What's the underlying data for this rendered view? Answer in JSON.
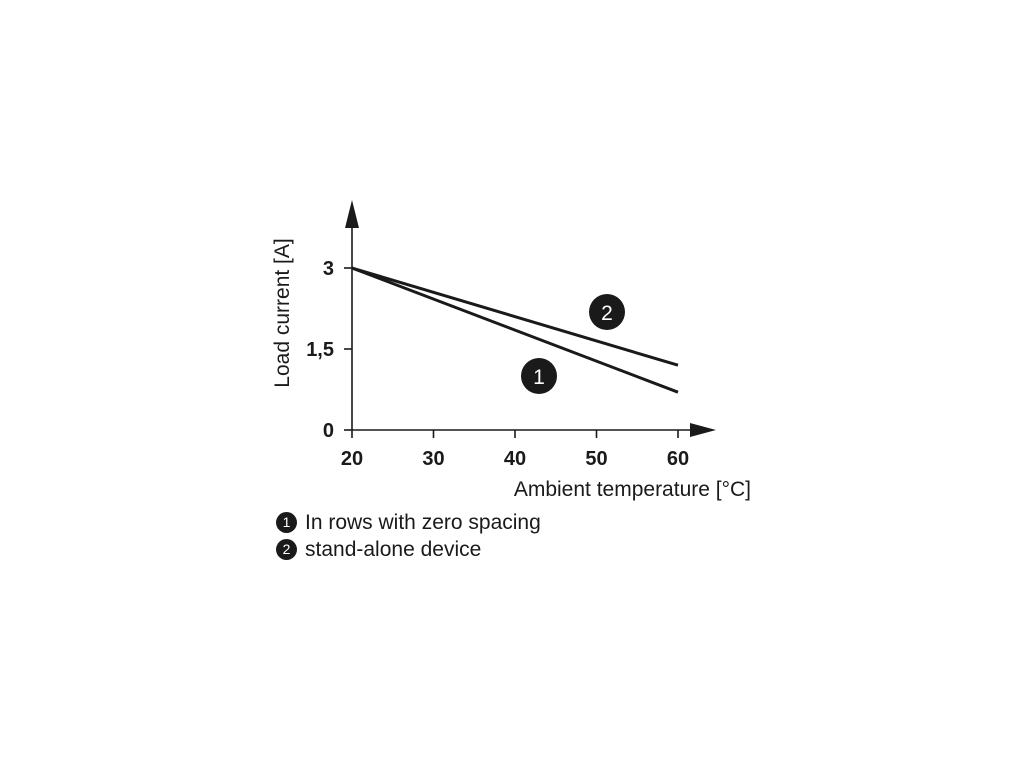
{
  "chart_data": {
    "type": "line",
    "xlabel": "Ambient temperature [°C]",
    "ylabel": "Load current [A]",
    "xlim": [
      20,
      60
    ],
    "ylim": [
      0,
      3
    ],
    "x_ticks": [
      "20",
      "30",
      "40",
      "50",
      "60"
    ],
    "y_ticks": [
      "0",
      "1,5",
      "3"
    ],
    "x_tick_values": [
      20,
      30,
      40,
      50,
      60
    ],
    "y_tick_values": [
      0,
      1.5,
      3
    ],
    "series": [
      {
        "marker": "1",
        "x": [
          20,
          60
        ],
        "y": [
          3,
          0.7
        ]
      },
      {
        "marker": "2",
        "x": [
          20,
          60
        ],
        "y": [
          3,
          1.2
        ]
      }
    ],
    "legend": [
      {
        "marker": "1",
        "label": "In rows with zero spacing"
      },
      {
        "marker": "2",
        "label": "stand-alone device"
      }
    ],
    "colors": {
      "line": "#1a1a1a",
      "marker_fill": "#1a1a1a",
      "marker_text": "#ffffff"
    }
  }
}
